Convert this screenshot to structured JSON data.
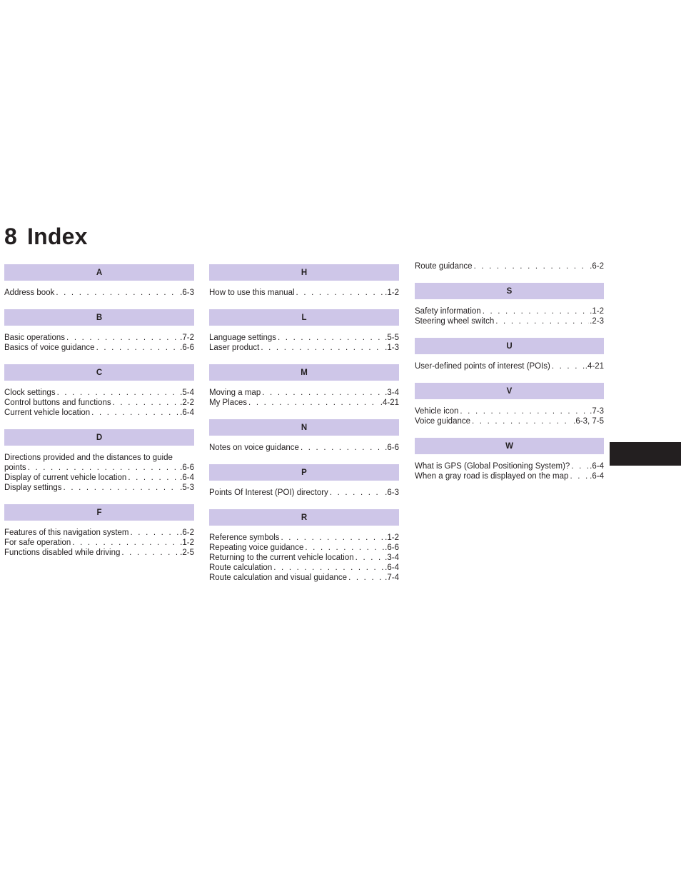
{
  "title": {
    "number": "8",
    "text": "Index"
  },
  "columns": [
    {
      "sections": [
        {
          "letter": "A",
          "entries": [
            {
              "term": "Address book",
              "page": ".6-3"
            }
          ]
        },
        {
          "letter": "B",
          "entries": [
            {
              "term": "Basic operations",
              "page": ".7-2"
            },
            {
              "term": "Basics of voice guidance",
              "page": ".6-6"
            }
          ]
        },
        {
          "letter": "C",
          "entries": [
            {
              "term": "Clock settings",
              "page": ".5-4"
            },
            {
              "term": "Control buttons and functions",
              "page": ".2-2"
            },
            {
              "term": "Current vehicle location",
              "page": ".6-4"
            }
          ]
        },
        {
          "letter": "D",
          "entries": [
            {
              "line1": "Directions provided and the distances to guide",
              "term": "points",
              "page": ".6-6"
            },
            {
              "term": "Display of current vehicle location",
              "page": ".6-4"
            },
            {
              "term": "Display settings",
              "page": ".5-3"
            }
          ]
        },
        {
          "letter": "F",
          "entries": [
            {
              "term": "Features of this navigation system",
              "page": ".6-2"
            },
            {
              "term": "For safe operation",
              "page": ".1-2"
            },
            {
              "term": "Functions disabled while driving",
              "page": ".2-5"
            }
          ]
        }
      ]
    },
    {
      "sections": [
        {
          "letter": "H",
          "entries": [
            {
              "term": "How to use this manual",
              "page": ".1-2"
            }
          ]
        },
        {
          "letter": "L",
          "entries": [
            {
              "term": "Language settings",
              "page": ".5-5"
            },
            {
              "term": "Laser product",
              "page": ".1-3"
            }
          ]
        },
        {
          "letter": "M",
          "entries": [
            {
              "term": "Moving a map",
              "page": ".3-4"
            },
            {
              "term": "My Places",
              "page": ".4-21"
            }
          ]
        },
        {
          "letter": "N",
          "entries": [
            {
              "term": "Notes on voice guidance",
              "page": ".6-6"
            }
          ]
        },
        {
          "letter": "P",
          "entries": [
            {
              "term": "Points Of Interest (POI) directory",
              "page": ".6-3"
            }
          ]
        },
        {
          "letter": "R",
          "entries": [
            {
              "term": "Reference symbols",
              "page": ".1-2"
            },
            {
              "term": "Repeating voice guidance",
              "page": ".6-6"
            },
            {
              "term": "Returning to the current vehicle location",
              "page": ".3-4"
            },
            {
              "term": "Route calculation",
              "page": ".6-4"
            },
            {
              "term": "Route calculation and visual guidance",
              "page": ".7-4"
            }
          ]
        }
      ]
    },
    {
      "sections": [
        {
          "letter": "",
          "entries": [
            {
              "term": "Route guidance",
              "page": ".6-2"
            }
          ]
        },
        {
          "letter": "S",
          "entries": [
            {
              "term": "Safety information",
              "page": ".1-2"
            },
            {
              "term": "Steering wheel switch",
              "page": ".2-3"
            }
          ]
        },
        {
          "letter": "U",
          "entries": [
            {
              "term": "User-defined points of interest (POIs)",
              "page": ".4-21"
            }
          ]
        },
        {
          "letter": "V",
          "entries": [
            {
              "term": "Vehicle icon",
              "page": ".7-3"
            },
            {
              "term": "Voice guidance",
              "page": ".6-3, 7-5"
            }
          ]
        },
        {
          "letter": "W",
          "entries": [
            {
              "term": "What is GPS (Global Positioning System)?",
              "page": ".6-4"
            },
            {
              "term": "When a gray road is displayed on the map",
              "page": ".6-4"
            }
          ]
        }
      ]
    }
  ]
}
